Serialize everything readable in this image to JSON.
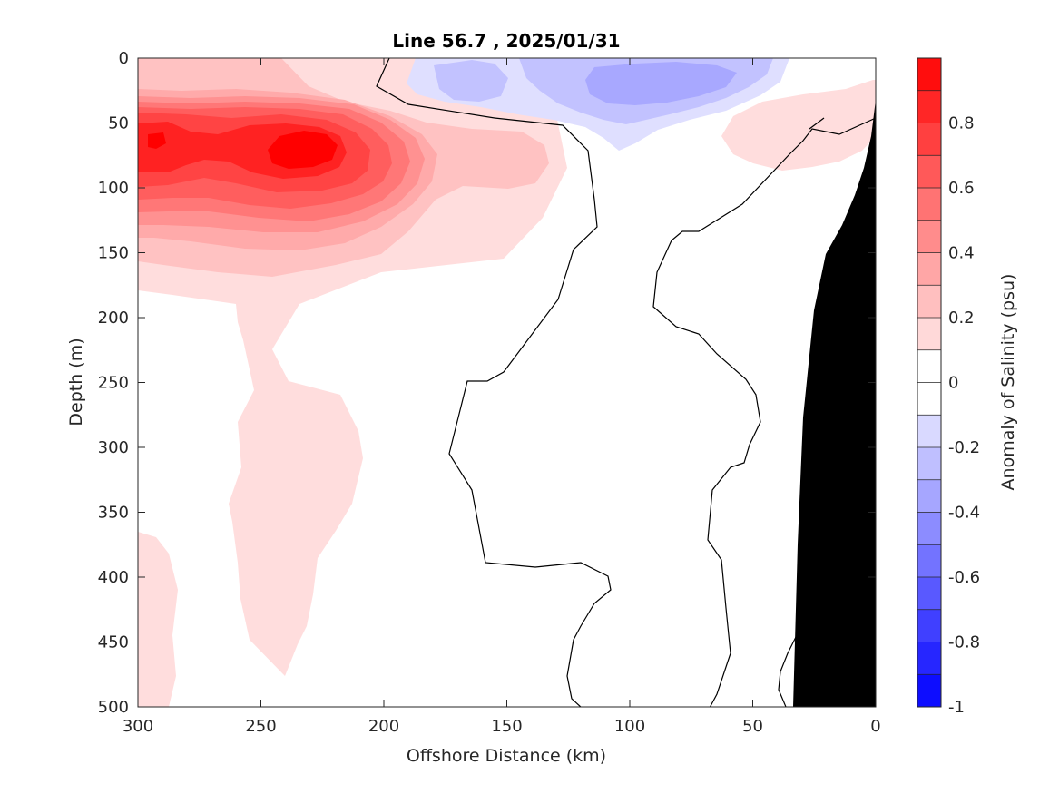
{
  "chart_data": {
    "type": "heatmap",
    "title": "Line 56.7 , 2025/01/31",
    "xlabel": "Offshore Distance (km)",
    "ylabel": "Depth (m)",
    "colorbar_label": "Anomaly of Salinity (psu)",
    "xlim": [
      300,
      0
    ],
    "ylim": [
      500,
      0
    ],
    "x_ticks": [
      "300",
      "250",
      "200",
      "150",
      "100",
      "50",
      "0"
    ],
    "y_ticks": [
      "0",
      "50",
      "100",
      "150",
      "200",
      "250",
      "300",
      "350",
      "400",
      "450",
      "500"
    ],
    "colorbar_ticks": [
      "0.8",
      "0.6",
      "0.4",
      "0.2",
      "0",
      "-0.2",
      "-0.4",
      "-0.6",
      "-0.8",
      "-1"
    ],
    "colorbar_range": [
      -1,
      1
    ],
    "contour_step": 0.1,
    "zero_contour": true,
    "colors": {
      "bathymetry": "#000000",
      "zero_contour": "#000000",
      "positive_max": "#ff0000",
      "negative_max": "#0000ff"
    },
    "features": [
      {
        "name": "subsurface salinity maximum",
        "x": 232,
        "depth": 70,
        "anomaly": 0.95
      },
      {
        "name": "near-surface offshore maximum",
        "x": 290,
        "depth": 65,
        "anomaly": 0.85
      },
      {
        "name": "surface fresh anomaly",
        "x": 100,
        "depth": 20,
        "anomaly": -0.35
      },
      {
        "name": "nearshore positive patch",
        "x": 30,
        "depth": 40,
        "anomaly": 0.15
      }
    ]
  }
}
